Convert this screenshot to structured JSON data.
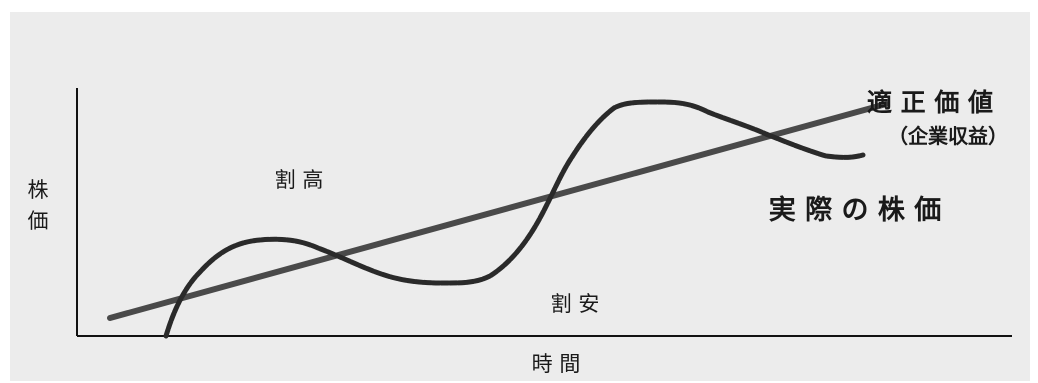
{
  "axes": {
    "y_label_chars": [
      "株",
      "価"
    ],
    "x_label": "時 間"
  },
  "regions": {
    "overvalued": "割 高",
    "undervalued": "割 安"
  },
  "legend": {
    "fair_value_title": "適 正 価 値",
    "fair_value_subtitle": "（企業収益）",
    "actual_price": "実 際 の 株 価"
  },
  "colors": {
    "background": "#ececec",
    "axis": "#111111",
    "fair_value_line": "#4a4a4a",
    "price_curve": "#2a2a2a",
    "text": "#1a1a1a"
  }
}
